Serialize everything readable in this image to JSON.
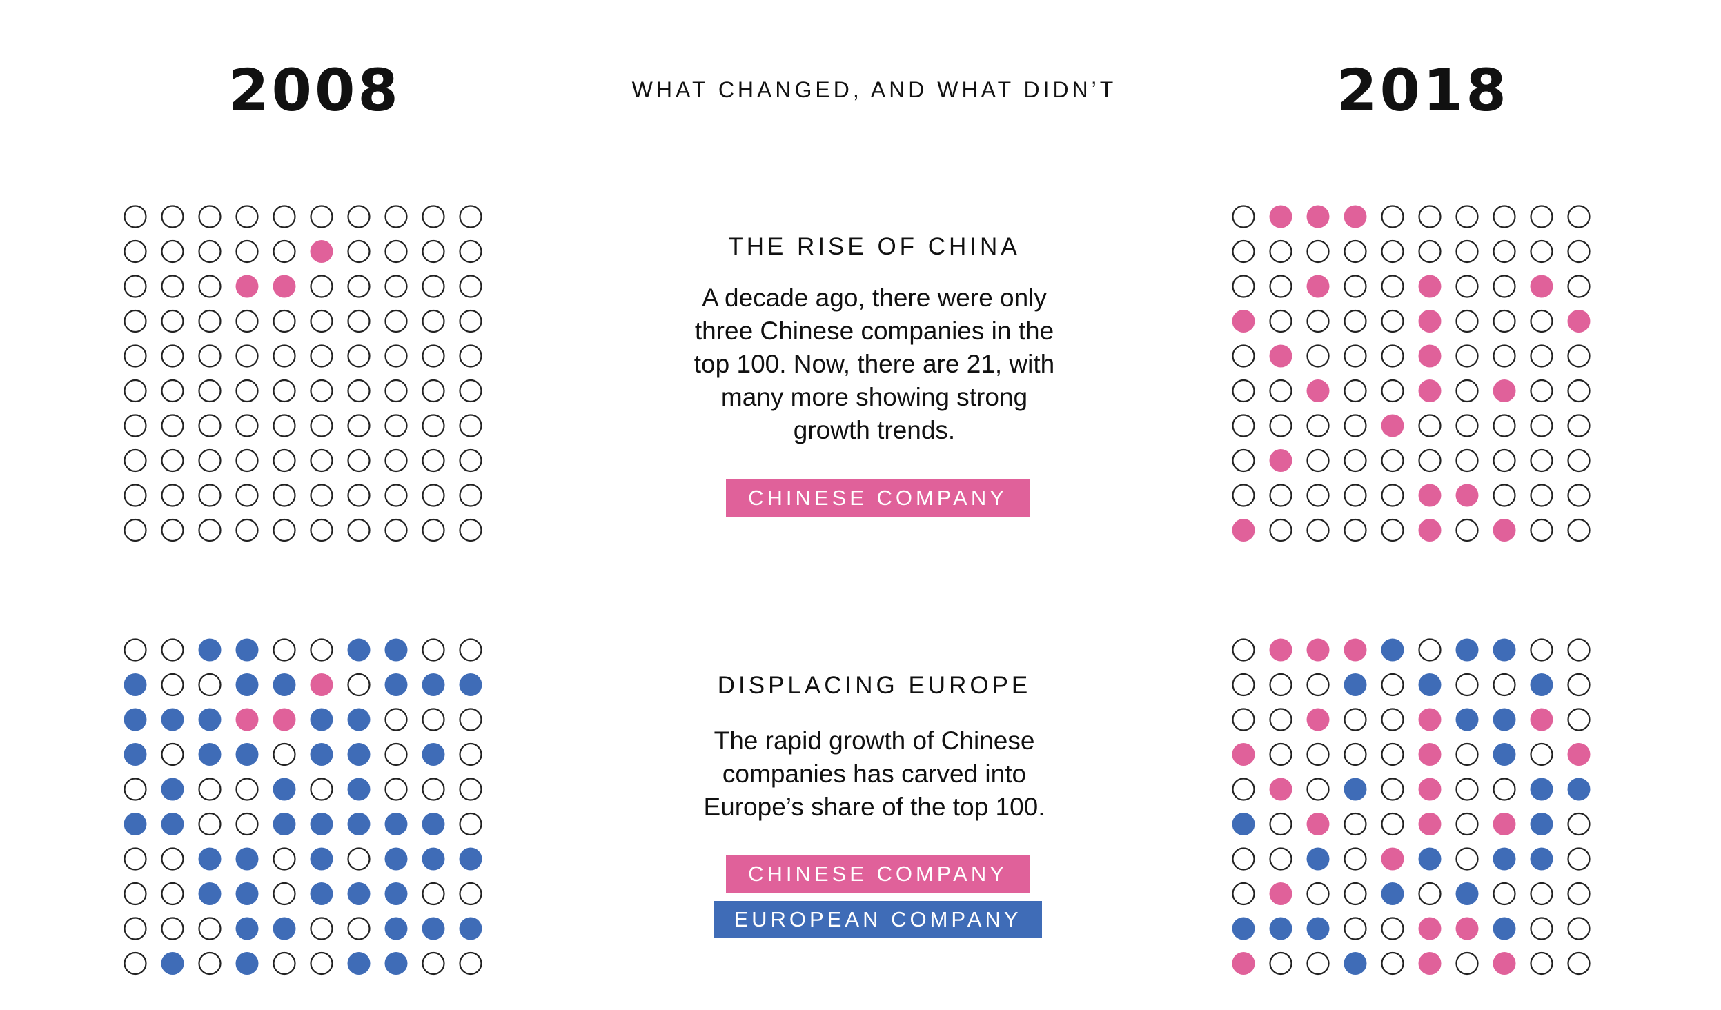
{
  "header": {
    "year_left": "2008",
    "year_right": "2018",
    "subtitle": "WHAT CHANGED, AND WHAT DIDN’T"
  },
  "colors": {
    "chinese": "#e0619a",
    "european": "#3f6cb7",
    "empty_stroke": "#222222",
    "background": "#ffffff"
  },
  "sections": {
    "china": {
      "heading": "THE RISE OF CHINA",
      "body_lines": [
        "A decade ago, there were only",
        "three Chinese companies in the",
        "top 100. Now, there are 21, with",
        "many more showing strong",
        "growth trends."
      ],
      "tags": [
        "CHINESE COMPANY"
      ]
    },
    "europe": {
      "heading": "DISPLACING EUROPE",
      "body_lines": [
        "The rapid growth of Chinese",
        "companies has carved into",
        "Europe’s share of the top 100."
      ],
      "tags": [
        "CHINESE COMPANY",
        "EUROPEAN COMPANY"
      ]
    }
  },
  "chart_data": [
    {
      "type": "waffle",
      "year": "2008",
      "topic": "china",
      "legend": {
        "C": "CHINESE COMPANY"
      },
      "rows": [
        "..........",
        ".....C....",
        "...CC.....",
        "..........",
        "..........",
        "..........",
        "..........",
        "..........",
        "..........",
        ".........."
      ]
    },
    {
      "type": "waffle",
      "year": "2018",
      "topic": "china",
      "legend": {
        "C": "CHINESE COMPANY"
      },
      "rows": [
        ".CCC......",
        "..........",
        "..C..C..C.",
        "C....C...C",
        ".C...C....",
        "..C..C.C..",
        "....C.....",
        ".C........",
        ".....CC...",
        "C....C.C.."
      ]
    },
    {
      "type": "waffle",
      "year": "2008",
      "topic": "europe",
      "legend": {
        "C": "CHINESE COMPANY",
        "E": "EUROPEAN COMPANY"
      },
      "rows": [
        "..EE..EE..",
        "E..EEC.EEE",
        "EEECCEE...",
        "E.EE.EE.E.",
        ".E..E.E...",
        "EE..EEEEE.",
        "..EE.E.EEE",
        "..EE.EEE..",
        "...EE..EEE",
        ".E.E..EE.."
      ]
    },
    {
      "type": "waffle",
      "year": "2018",
      "topic": "europe",
      "legend": {
        "C": "CHINESE COMPANY",
        "E": "EUROPEAN COMPANY"
      },
      "rows": [
        ".CCCE.EE..",
        "...E.E..E.",
        "..C..CEEC.",
        "C....C.E.C",
        ".C.E.C..EE",
        "E.C..C.CE.",
        "..E.CE.EE.",
        ".C..E.E...",
        "EEE..CCE..",
        "C..E.C.C.."
      ]
    }
  ]
}
